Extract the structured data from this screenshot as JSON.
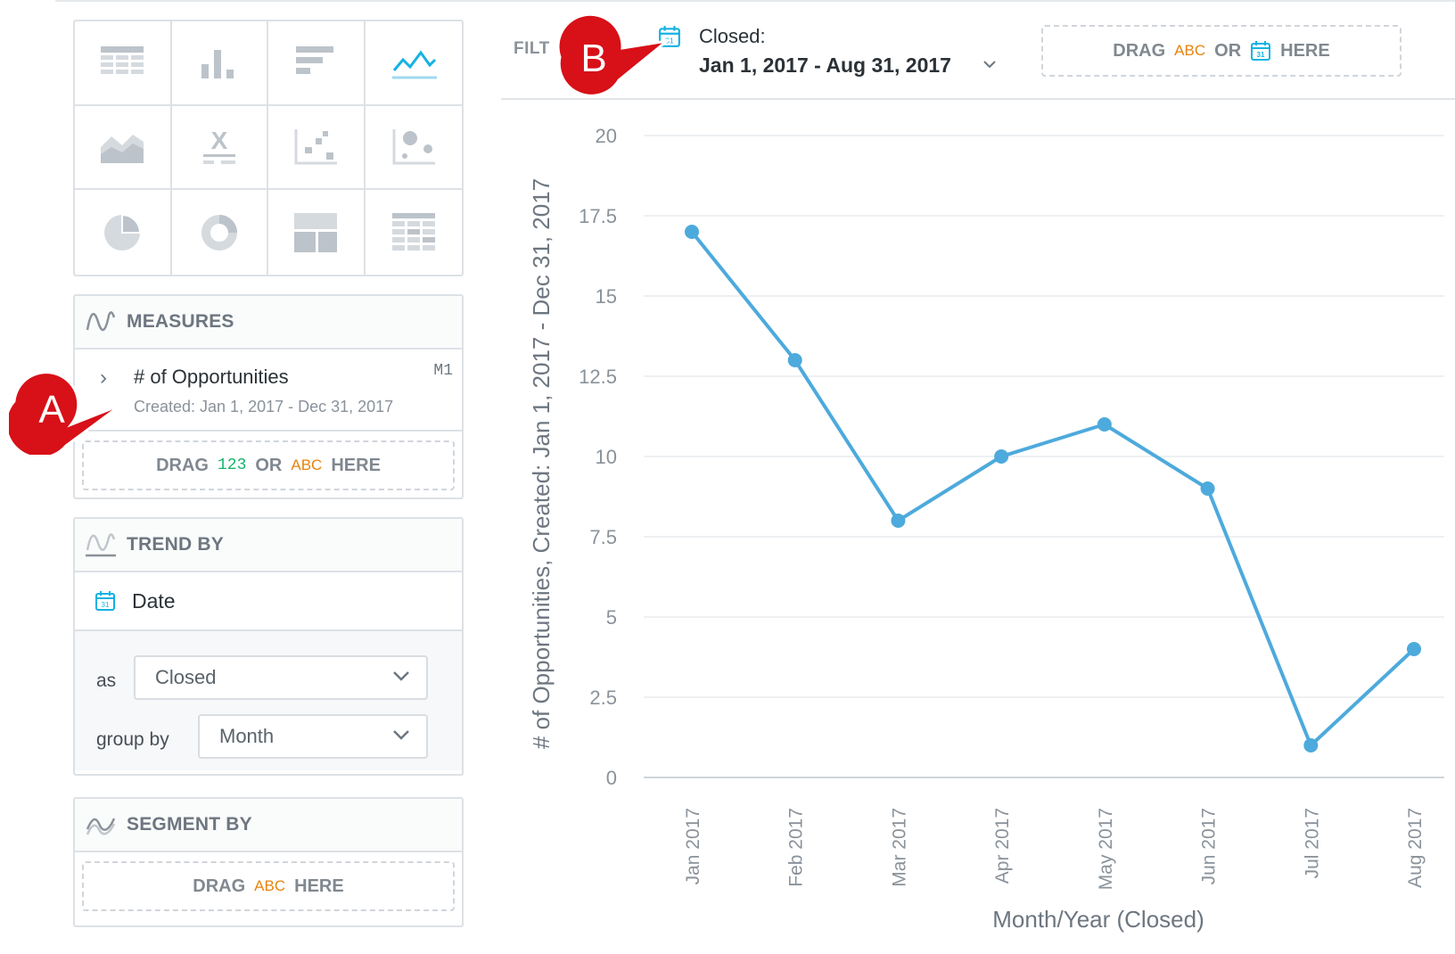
{
  "viz_types": [
    {
      "name": "table-icon",
      "selected": false
    },
    {
      "name": "column-chart-icon",
      "selected": false
    },
    {
      "name": "bar-chart-icon",
      "selected": false
    },
    {
      "name": "line-chart-icon",
      "selected": true
    },
    {
      "name": "area-chart-icon",
      "selected": false
    },
    {
      "name": "headline-icon",
      "selected": false
    },
    {
      "name": "scatter-plot-icon",
      "selected": false
    },
    {
      "name": "bubble-chart-icon",
      "selected": false
    },
    {
      "name": "pie-chart-icon",
      "selected": false
    },
    {
      "name": "donut-chart-icon",
      "selected": false
    },
    {
      "name": "treemap-icon",
      "selected": false
    },
    {
      "name": "heatmap-icon",
      "selected": false
    }
  ],
  "measures": {
    "title": "MEASURES",
    "item": {
      "name": "# of Opportunities",
      "filter": "Created: Jan 1, 2017 - Dec 31, 2017",
      "tag": "M1"
    },
    "drop": {
      "drag": "DRAG",
      "num": "123",
      "or": "OR",
      "abc": "ABC",
      "here": "HERE"
    }
  },
  "trend_by": {
    "title": "TREND BY",
    "item": "Date",
    "as_label": "as",
    "as_value": "Closed",
    "group_label": "group by",
    "group_value": "Month"
  },
  "segment_by": {
    "title": "SEGMENT BY",
    "drop": {
      "drag": "DRAG",
      "abc": "ABC",
      "here": "HERE"
    }
  },
  "filter_bar": {
    "label": "FILT",
    "closed": "Closed:",
    "range": "Jan 1, 2017 - Aug 31, 2017",
    "drop": {
      "drag": "DRAG",
      "abc": "ABC",
      "or": "OR",
      "here": "HERE"
    }
  },
  "callouts": {
    "a": "A",
    "b": "B"
  },
  "colors": {
    "line": "#4daadc",
    "accent": "#14b2e2",
    "callout": "#e8141b"
  },
  "chart_data": {
    "type": "line",
    "categories": [
      "Jan 2017",
      "Feb 2017",
      "Mar 2017",
      "Apr 2017",
      "May 2017",
      "Jun 2017",
      "Jul 2017",
      "Aug 2017"
    ],
    "series": [
      {
        "values": [
          17,
          13,
          8,
          10,
          11,
          9,
          1,
          4
        ]
      }
    ],
    "ylim": [
      0,
      20
    ],
    "yticks": [
      0,
      2.5,
      5,
      7.5,
      10,
      12.5,
      15,
      17.5,
      20
    ],
    "ytick_labels": [
      "0",
      "2.5",
      "5",
      "7.5",
      "10",
      "12.5",
      "15",
      "17.5",
      "20"
    ],
    "xlabel": "Month/Year (Closed)",
    "ylabel": "# of Opportunities, Created: Jan 1, 2017 - Dec 31, 2017",
    "grid": true
  }
}
